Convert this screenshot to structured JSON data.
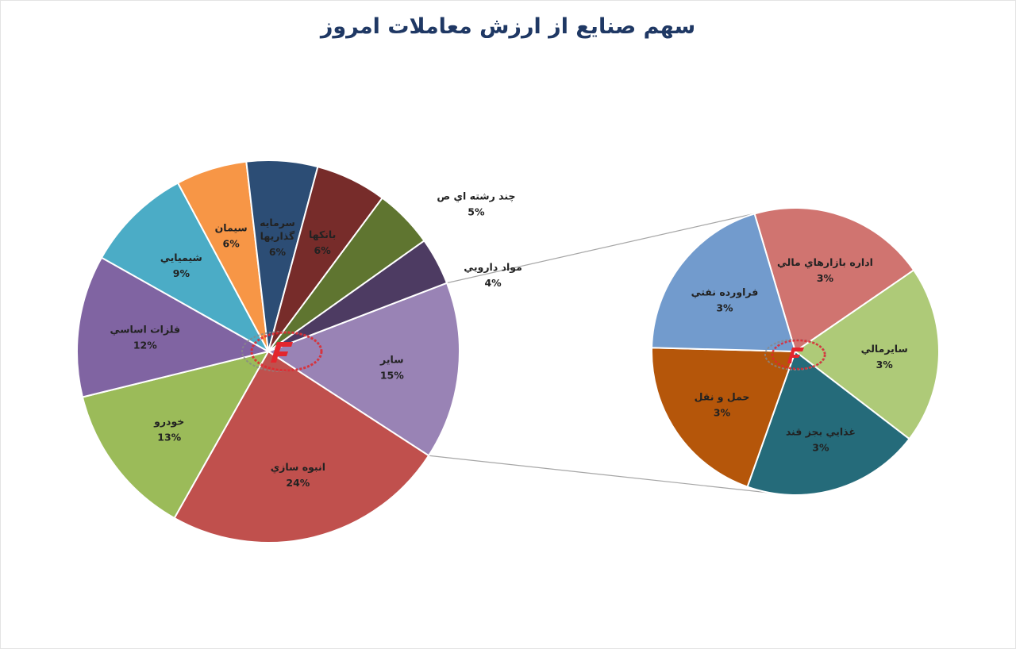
{
  "title": "سهم صنایع از ارزش معاملات امروز",
  "chart_data": {
    "type": "bar-of-pie",
    "title": "سهم صنایع از ارزش معاملات امروز",
    "main_pie": {
      "slices": [
        {
          "name": "ساير",
          "value": 15,
          "label": "15%",
          "color": "#9983b5"
        },
        {
          "name": "انبوه سازي",
          "value": 24,
          "label": "24%",
          "color": "#c0504d"
        },
        {
          "name": "خودرو",
          "value": 13,
          "label": "13%",
          "color": "#9bbb59"
        },
        {
          "name": "فلزات اساسي",
          "value": 12,
          "label": "12%",
          "color": "#8064a2"
        },
        {
          "name": "شيميايي",
          "value": 9,
          "label": "9%",
          "color": "#4bacc6"
        },
        {
          "name": "سيمان",
          "value": 6,
          "label": "6%",
          "color": "#f79646"
        },
        {
          "name": "سرمايه گذاريها",
          "value": 6,
          "label": "6%",
          "color": "#2c4d75"
        },
        {
          "name": "بانکها",
          "value": 6,
          "label": "6%",
          "color": "#772c2a"
        },
        {
          "name": "چند رشته اي ص",
          "value": 5,
          "label": "5%",
          "color": "#5f7530"
        },
        {
          "name": "مواد دارويي",
          "value": 4,
          "label": "4%",
          "color": "#4d3b62"
        }
      ]
    },
    "secondary_pie": {
      "slices": [
        {
          "name": "اداره بازارهاي مالي",
          "value": 3,
          "label": "3%",
          "color": "#d07470"
        },
        {
          "name": "سايرمالي",
          "value": 3,
          "label": "3%",
          "color": "#aeca78"
        },
        {
          "name": "غذايي بجز قند",
          "value": 3,
          "label": "3%",
          "color": "#256b7a"
        },
        {
          "name": "حمل و نقل",
          "value": 3,
          "label": "3%",
          "color": "#b5560a"
        },
        {
          "name": "فراورده نفتي",
          "value": 3,
          "label": "3%",
          "color": "#729bcd"
        }
      ]
    }
  }
}
